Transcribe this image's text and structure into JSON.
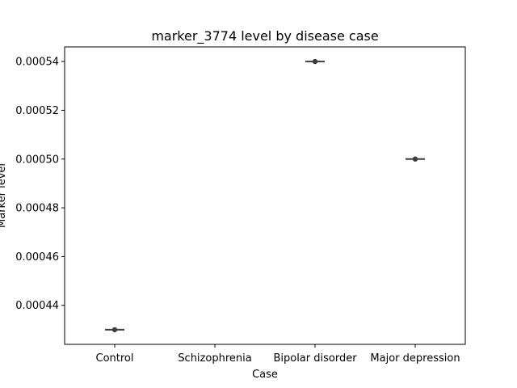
{
  "chart_data": {
    "type": "point",
    "title": "marker_3774 level by disease case",
    "xlabel": "Case",
    "ylabel": "Marker level",
    "categories": [
      "Control",
      "Schizophrenia",
      "Bipolar disorder",
      "Major depression"
    ],
    "values": [
      0.00043,
      null,
      0.00054,
      0.0005
    ],
    "ylim": [
      0.000424,
      0.000546
    ],
    "yticks": [
      0.00044,
      0.00046,
      0.00048,
      0.0005,
      0.00052,
      0.00054
    ],
    "ytick_labels": [
      "0.00044",
      "0.00046",
      "0.00048",
      "0.00050",
      "0.00052",
      "0.00054"
    ],
    "grid": false,
    "colors": {
      "marker": "#3d3d3d",
      "axis": "#000000"
    }
  }
}
